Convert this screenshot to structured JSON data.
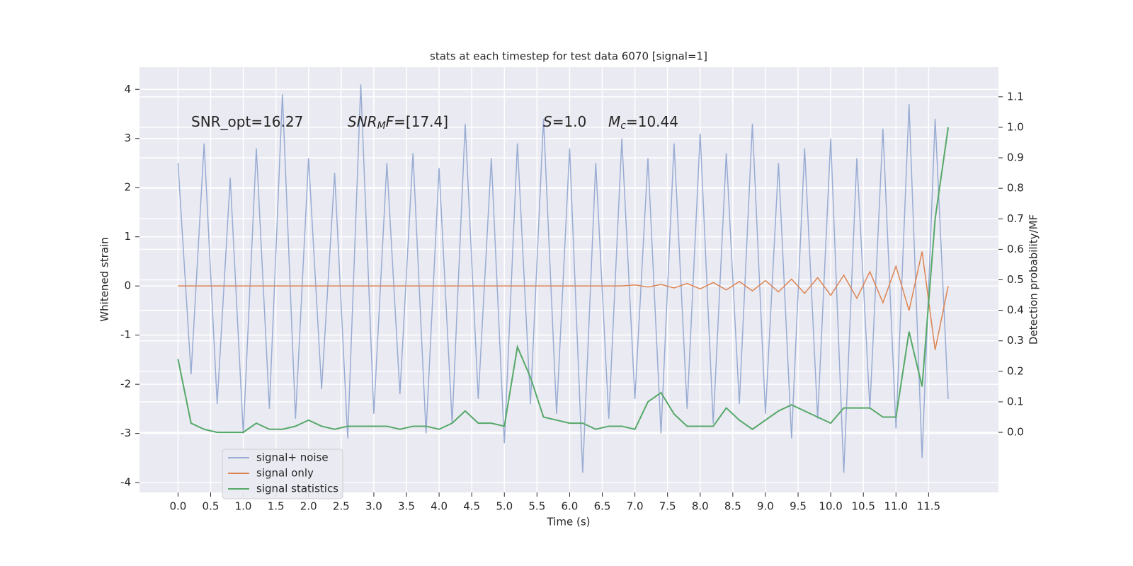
{
  "chart_data": {
    "type": "line",
    "title": "stats at each timestep for test data 6070 [signal=1]",
    "xlabel": "Time (s)",
    "ylabel": "Whitened strain",
    "y2label": "Detection probability/MF",
    "annotations": [
      [
        {
          "text": "SNR_opt=16.27"
        }
      ],
      [
        {
          "text": "SNR",
          "italic": true
        },
        {
          "text": "M",
          "italic": true,
          "sub": true
        },
        {
          "text": "F",
          "italic": true
        },
        {
          "text": "=[17.4]"
        }
      ],
      [
        {
          "text": "S",
          "italic": true
        },
        {
          "text": "=1.0"
        }
      ],
      [
        {
          "text": "M",
          "italic": true
        },
        {
          "text": "c",
          "italic": true,
          "sub": true
        },
        {
          "text": "=10.44"
        }
      ]
    ],
    "x": [
      0,
      0.2,
      0.4,
      0.6,
      0.8,
      1,
      1.2,
      1.4,
      1.6,
      1.8,
      2,
      2.2,
      2.4,
      2.6,
      2.8,
      3,
      3.2,
      3.4,
      3.6,
      3.8,
      4,
      4.2,
      4.4,
      4.6,
      4.8,
      5,
      5.2,
      5.4,
      5.6,
      5.8,
      6,
      6.2,
      6.4,
      6.6,
      6.8,
      7,
      7.2,
      7.4,
      7.6,
      7.8,
      8,
      8.2,
      8.4,
      8.6,
      8.8,
      9,
      9.2,
      9.4,
      9.6,
      9.8,
      10,
      10.2,
      10.4,
      10.6,
      10.8,
      11,
      11.2,
      11.4,
      11.6,
      11.8
    ],
    "series": [
      {
        "name": "signal+ noise",
        "color": "#99acd3",
        "values": [
          2.5,
          -1.8,
          2.9,
          -2.4,
          2.2,
          -3.0,
          2.8,
          -2.5,
          3.9,
          -2.7,
          2.6,
          -2.1,
          2.3,
          -3.1,
          4.1,
          -2.6,
          2.5,
          -2.2,
          2.7,
          -3.0,
          2.4,
          -2.8,
          3.3,
          -2.3,
          2.6,
          -3.2,
          2.9,
          -2.4,
          3.4,
          -2.6,
          2.8,
          -3.8,
          2.5,
          -2.7,
          3.0,
          -2.3,
          2.6,
          -3.0,
          2.9,
          -2.5,
          3.1,
          -2.8,
          2.7,
          -2.4,
          3.3,
          -2.6,
          2.5,
          -3.1,
          2.8,
          -2.7,
          3.0,
          -3.8,
          2.6,
          -2.5,
          3.2,
          -2.9,
          3.7,
          -3.5,
          3.4,
          -2.3
        ]
      },
      {
        "name": "signal only",
        "color": "#dd8452",
        "values": [
          0,
          0,
          0,
          0,
          0,
          0,
          0,
          0,
          0,
          0,
          0,
          0,
          0,
          0,
          0,
          0,
          0,
          0,
          0,
          0,
          0,
          0,
          0,
          0,
          0,
          0,
          0,
          0,
          0,
          0,
          0,
          0,
          0,
          0,
          0,
          0.02,
          -0.02,
          0.03,
          -0.04,
          0.05,
          -0.06,
          0.07,
          -0.08,
          0.09,
          -0.1,
          0.11,
          -0.12,
          0.14,
          -0.15,
          0.17,
          -0.19,
          0.22,
          -0.25,
          0.29,
          -0.34,
          0.4,
          -0.5,
          0.7,
          -1.3,
          0
        ]
      },
      {
        "name": "signal statistics",
        "color": "#55a868",
        "axis": "y2",
        "values": [
          0.24,
          0.03,
          0.01,
          0,
          0,
          0,
          0.03,
          0.01,
          0.01,
          0.02,
          0.04,
          0.02,
          0.01,
          0.02,
          0.02,
          0.02,
          0.02,
          0.01,
          0.02,
          0.02,
          0.01,
          0.03,
          0.07,
          0.03,
          0.03,
          0.02,
          0.28,
          0.18,
          0.05,
          0.04,
          0.03,
          0.03,
          0.01,
          0.02,
          0.02,
          0.01,
          0.1,
          0.13,
          0.06,
          0.02,
          0.02,
          0.02,
          0.08,
          0.04,
          0.01,
          0.04,
          0.07,
          0.09,
          0.07,
          0.05,
          0.03,
          0.08,
          0.08,
          0.08,
          0.05,
          0.05,
          0.33,
          0.15,
          0.7,
          1.0
        ]
      }
    ],
    "xlim": [
      -0.59,
      12.57
    ],
    "ylim": [
      -4.2,
      4.45
    ],
    "y2lim": [
      -0.197,
      1.197
    ],
    "xticks": [
      {
        "value": 0,
        "label": "0.0"
      },
      0.5,
      {
        "value": 1,
        "label": "1.0"
      },
      1.5,
      {
        "value": 2,
        "label": "2.0"
      },
      2.5,
      {
        "value": 3,
        "label": "3.0"
      },
      3.5,
      {
        "value": 4,
        "label": "4.0"
      },
      4.5,
      {
        "value": 5,
        "label": "5.0"
      },
      5.5,
      {
        "value": 6,
        "label": "6.0"
      },
      6.5,
      {
        "value": 7,
        "label": "7.0"
      },
      7.5,
      {
        "value": 8,
        "label": "8.0"
      },
      8.5,
      {
        "value": 9,
        "label": "9.0"
      },
      9.5,
      {
        "value": 10,
        "label": "10.0"
      },
      10.5,
      {
        "value": 11,
        "label": "11.0"
      },
      11.5
    ],
    "yticks": [
      -4,
      -3,
      -2,
      -1,
      0,
      1,
      2,
      3,
      4
    ],
    "y2ticks": [
      {
        "value": 0,
        "label": "0.0"
      },
      0.1,
      0.2,
      0.3,
      0.4,
      0.5,
      0.6,
      0.7,
      0.8,
      0.9,
      {
        "value": 1,
        "label": "1.0"
      },
      1.1
    ],
    "grid": true,
    "legend": "lower left"
  }
}
